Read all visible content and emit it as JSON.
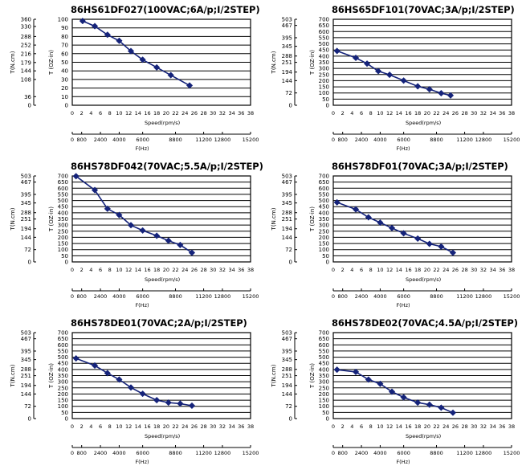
{
  "chart_data": [
    {
      "type": "line",
      "title": "86HS61DF027(100VAC;6A/p;I/2STEP)",
      "ylabel_left": "T(N.cm)",
      "ylabel_right": "T (OZ-in)",
      "xlabel_speed": "Speed(rpm/s)",
      "xlabel_freq": "F(Hz)",
      "left_ticks": [
        "360",
        "330",
        "288",
        "252",
        "216",
        "179",
        "144",
        "108",
        "36",
        "0"
      ],
      "oz_ticks": [
        "0",
        "10",
        "20",
        "30",
        "40",
        "50",
        "60",
        "70",
        "80",
        "90",
        "100"
      ],
      "speed_ticks": [
        "0",
        "2",
        "4",
        "6",
        "8",
        "10",
        "12",
        "14",
        "16",
        "18",
        "20",
        "22",
        "24",
        "26",
        "28",
        "30",
        "32",
        "34",
        "36",
        "38"
      ],
      "freq_ticks": [
        "0",
        "800",
        "2400",
        "4000",
        "6000",
        "8800",
        "11200",
        "12800",
        "15200"
      ],
      "ylim": [
        0,
        100
      ],
      "xlim": [
        0,
        38
      ],
      "series": [
        {
          "x": [
            2.2,
            4.8,
            7.5,
            10,
            12.5,
            15,
            18,
            21,
            25
          ],
          "y": [
            98,
            92,
            82,
            75,
            63,
            53,
            44,
            35,
            23
          ]
        }
      ]
    },
    {
      "type": "line",
      "title": "86HS65DF101(70VAC;3A/p;I/2STEP)",
      "ylabel_left": "T(N.cm)",
      "ylabel_right": "T (OZ-in)",
      "xlabel_speed": "Speed(rpm/s)",
      "xlabel_freq": "F(Hz)",
      "left_ticks": [
        "503",
        "467",
        "395",
        "345",
        "288",
        "251",
        "194",
        "144",
        "72",
        "0"
      ],
      "oz_ticks": [
        "0",
        "50",
        "100",
        "150",
        "200",
        "250",
        "300",
        "350",
        "400",
        "450",
        "500",
        "550",
        "600",
        "650",
        "700"
      ],
      "speed_ticks": [
        "0",
        "2",
        "4",
        "6",
        "8",
        "10",
        "12",
        "14",
        "16",
        "18",
        "20",
        "22",
        "24",
        "26",
        "28",
        "30",
        "32",
        "34",
        "36",
        "38"
      ],
      "freq_ticks": [
        "0",
        "800",
        "2400",
        "4000",
        "6000",
        "8800",
        "11200",
        "12800",
        "15200"
      ],
      "ylim": [
        0,
        700
      ],
      "xlim": [
        0,
        38
      ],
      "series": [
        {
          "x": [
            0.8,
            4.8,
            7.2,
            9.6,
            12,
            15,
            18,
            20.5,
            23,
            25
          ],
          "y": [
            442,
            386,
            339,
            278,
            248,
            201,
            154,
            130,
            98,
            80
          ]
        }
      ]
    },
    {
      "type": "line",
      "title": "86HS78DF042(70VAC;5.5A/p;I/2STEP)",
      "ylabel_left": "T(N.cm)",
      "ylabel_right": "T (OZ-in)",
      "xlabel_speed": "Speed(rpm/s)",
      "xlabel_freq": "F(Hz)",
      "left_ticks": [
        "503",
        "467",
        "395",
        "345",
        "288",
        "251",
        "194",
        "144",
        "72",
        "0"
      ],
      "oz_ticks": [
        "0",
        "50",
        "100",
        "150",
        "200",
        "250",
        "300",
        "350",
        "400",
        "450",
        "500",
        "550",
        "600",
        "650",
        "700"
      ],
      "speed_ticks": [
        "0",
        "2",
        "4",
        "6",
        "8",
        "10",
        "12",
        "14",
        "16",
        "18",
        "20",
        "22",
        "24",
        "26",
        "28",
        "30",
        "32",
        "34",
        "36",
        "38"
      ],
      "freq_ticks": [
        "0",
        "800",
        "2400",
        "4000",
        "6000",
        "8800",
        "11200",
        "12800",
        "15200"
      ],
      "ylim": [
        0,
        700
      ],
      "xlim": [
        0,
        38
      ],
      "series": [
        {
          "x": [
            0.8,
            4.8,
            7.5,
            10,
            12.5,
            15,
            18,
            20.5,
            23,
            25.5
          ],
          "y": [
            698,
            585,
            433,
            382,
            299,
            256,
            213,
            173,
            138,
            75
          ]
        }
      ]
    },
    {
      "type": "line",
      "title": "86HS78DF01(70VAC;3A/p;I/2STEP)",
      "ylabel_left": "T(N.cm)",
      "ylabel_right": "T (OZ-in)",
      "xlabel_speed": "Speed(rpm/s)",
      "xlabel_freq": "F(Hz)",
      "left_ticks": [
        "503",
        "467",
        "395",
        "345",
        "288",
        "251",
        "194",
        "144",
        "72",
        "0"
      ],
      "oz_ticks": [
        "0",
        "50",
        "100",
        "150",
        "200",
        "250",
        "300",
        "350",
        "400",
        "450",
        "500",
        "550",
        "600",
        "650",
        "700"
      ],
      "speed_ticks": [
        "0",
        "2",
        "4",
        "6",
        "8",
        "10",
        "12",
        "14",
        "16",
        "18",
        "20",
        "22",
        "24",
        "26",
        "28",
        "30",
        "32",
        "34",
        "36",
        "38"
      ],
      "freq_ticks": [
        "0",
        "800",
        "2400",
        "4000",
        "6000",
        "8800",
        "11200",
        "12800",
        "15200"
      ],
      "ylim": [
        0,
        700
      ],
      "xlim": [
        0,
        38
      ],
      "series": [
        {
          "x": [
            0.8,
            4.8,
            7.5,
            10,
            12.5,
            15,
            18,
            20.5,
            23,
            25.5
          ],
          "y": [
            485,
            428,
            363,
            320,
            276,
            233,
            190,
            147,
            125,
            75
          ]
        }
      ]
    },
    {
      "type": "line",
      "title": "86HS78DE01(70VAC;2A/p;I/2STEP)",
      "ylabel_left": "T(N.cm)",
      "ylabel_right": "T (OZ-in)",
      "xlabel_speed": "Speed(rpm/s)",
      "xlabel_freq": "F(Hz)",
      "left_ticks": [
        "503",
        "467",
        "395",
        "345",
        "288",
        "251",
        "194",
        "144",
        "72",
        "0"
      ],
      "oz_ticks": [
        "0",
        "50",
        "100",
        "150",
        "200",
        "250",
        "300",
        "350",
        "400",
        "450",
        "500",
        "550",
        "600",
        "650",
        "700"
      ],
      "speed_ticks": [
        "0",
        "2",
        "4",
        "6",
        "8",
        "10",
        "12",
        "14",
        "16",
        "18",
        "20",
        "22",
        "24",
        "26",
        "28",
        "30",
        "32",
        "34",
        "36",
        "38"
      ],
      "freq_ticks": [
        "0",
        "800",
        "2400",
        "4000",
        "6000",
        "8800",
        "11200",
        "12800",
        "15200"
      ],
      "ylim": [
        0,
        700
      ],
      "xlim": [
        0,
        38
      ],
      "series": [
        {
          "x": [
            0.8,
            4.8,
            7.5,
            10,
            12.5,
            15,
            18,
            20.5,
            23,
            25.5
          ],
          "y": [
            490,
            432,
            370,
            318,
            253,
            202,
            150,
            130,
            122,
            105
          ]
        }
      ]
    },
    {
      "type": "line",
      "title": "86HS78DE02(70VAC;4.5A/p;I/2STEP)",
      "ylabel_left": "T(N.cm)",
      "ylabel_right": "T (OZ-in)",
      "xlabel_speed": "Speed(rpm/s)",
      "xlabel_freq": "F(Hz)",
      "left_ticks": [
        "503",
        "467",
        "395",
        "345",
        "288",
        "251",
        "194",
        "144",
        "72",
        "0"
      ],
      "oz_ticks": [
        "0",
        "50",
        "100",
        "150",
        "200",
        "250",
        "300",
        "350",
        "400",
        "450",
        "500",
        "550",
        "600",
        "650",
        "700"
      ],
      "speed_ticks": [
        "0",
        "2",
        "4",
        "6",
        "8",
        "10",
        "12",
        "14",
        "16",
        "18",
        "20",
        "22",
        "24",
        "26",
        "28",
        "30",
        "32",
        "34",
        "36",
        "38"
      ],
      "freq_ticks": [
        "0",
        "800",
        "2400",
        "4000",
        "6000",
        "8800",
        "11200",
        "12800",
        "15200"
      ],
      "ylim": [
        0,
        700
      ],
      "xlim": [
        0,
        38
      ],
      "series": [
        {
          "x": [
            0.8,
            4.8,
            7.5,
            10,
            12.5,
            15,
            18,
            20.5,
            23,
            25.5
          ],
          "y": [
            398,
            380,
            318,
            283,
            219,
            173,
            130,
            113,
            89,
            48
          ]
        }
      ]
    }
  ]
}
